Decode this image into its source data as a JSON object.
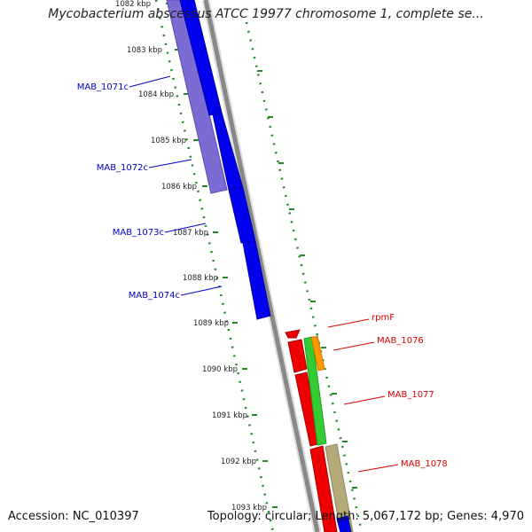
{
  "title": "Mycobacterium abscessus ATCC 19977 chromosome 1, complete se...",
  "footer": {
    "accession": "Accession: NC_010397",
    "summary": "Topology: circular; Length: 5,067,172 bp; Genes: 4,970"
  },
  "colors": {
    "kbp_tick": "#228822",
    "backbone": "#888888",
    "forward_gene": "#0000ee",
    "forward_cds": "#7b6cd4",
    "reverse_gene": "#ee0000",
    "green_gene": "#33cc33",
    "orange_gene": "#ff9900",
    "tan_gene": "#b5aa7a",
    "blue_label": "#0000cc",
    "red_label": "#dd0000"
  },
  "kbp_labels": [
    "1082 kbp",
    "1083 kbp",
    "1084 kbp",
    "1085 kbp",
    "1086 kbp",
    "1087 kbp",
    "1088 kbp",
    "1089 kbp",
    "1090 kbp",
    "1091 kbp",
    "1092 kbp",
    "1093 kbp"
  ],
  "forward_genes": [
    {
      "label": "MAB_1071c",
      "color": "#0000cc"
    },
    {
      "label": "MAB_1072c",
      "color": "#0000cc"
    },
    {
      "label": "MAB_1073c",
      "color": "#0000cc"
    },
    {
      "label": "MAB_1074c",
      "color": "#0000cc"
    }
  ],
  "reverse_genes": [
    {
      "label": "rpmF",
      "color": "#dd0000"
    },
    {
      "label": "MAB_1076",
      "color": "#dd0000"
    },
    {
      "label": "MAB_1077",
      "color": "#dd0000"
    },
    {
      "label": "MAB_1078",
      "color": "#dd0000"
    }
  ]
}
